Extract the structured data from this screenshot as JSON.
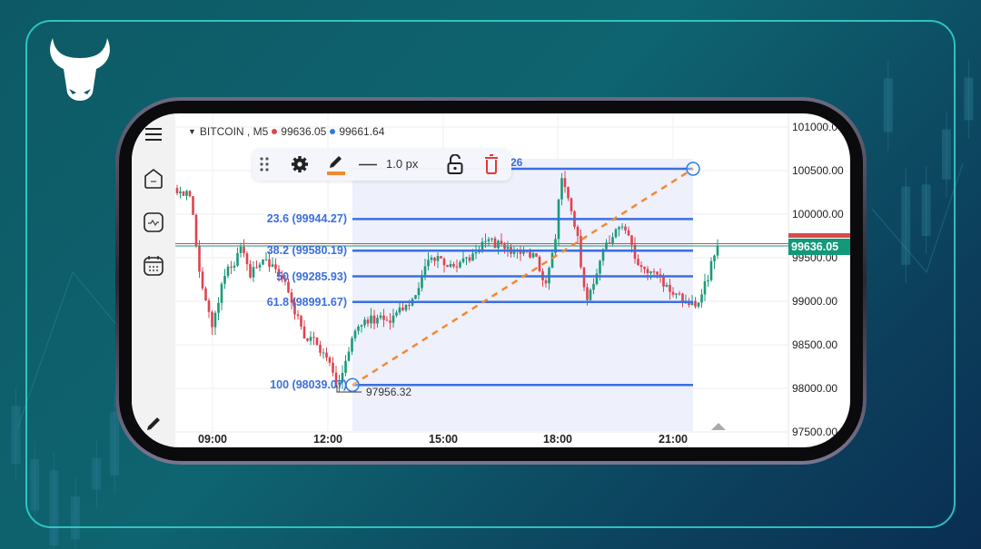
{
  "colors": {
    "accent": "#3b6fe0",
    "bull": "#1b9a7a",
    "bear": "#e0434f",
    "trend": "#f08a30",
    "frame": "#35d6d0"
  },
  "brand": {
    "logo": "bull-head-logo"
  },
  "sidebar": {
    "items": [
      {
        "icon": "menu-icon"
      },
      {
        "icon": "home-icon"
      },
      {
        "icon": "indicator-icon"
      },
      {
        "icon": "calendar-icon"
      },
      {
        "icon": "pencil-icon"
      }
    ]
  },
  "header": {
    "symbol": "BITCOIN , M5",
    "bid": "99636.05",
    "ask": "99661.64"
  },
  "toolbar": {
    "width": "1.0 px",
    "icons": [
      "drag-handle-icon",
      "gear-icon",
      "pencil-icon",
      "line-style-icon",
      "unlock-icon",
      "trash-icon"
    ]
  },
  "fib": {
    "top_label": "26",
    "levels": [
      {
        "label": "23.6 (99944.27)",
        "price": 99944.27
      },
      {
        "label": "38.2 (99580.19)",
        "price": 99580.19
      },
      {
        "label": "50 (99285.93)",
        "price": 99285.93
      },
      {
        "label": "61.8 (98991.67)",
        "price": 98991.67
      },
      {
        "label": "100 (98039.07)",
        "price": 98039.07
      }
    ],
    "top_price": 100526,
    "low_label": "97956.32"
  },
  "price_axis": [
    "101000.00",
    "100500.00",
    "100000.00",
    "99500.00",
    "99000.00",
    "98500.00",
    "98000.00",
    "97500.00"
  ],
  "current_price": "99636.05",
  "time_axis": [
    "09:00",
    "12:00",
    "15:00",
    "18:00",
    "21:00"
  ]
}
